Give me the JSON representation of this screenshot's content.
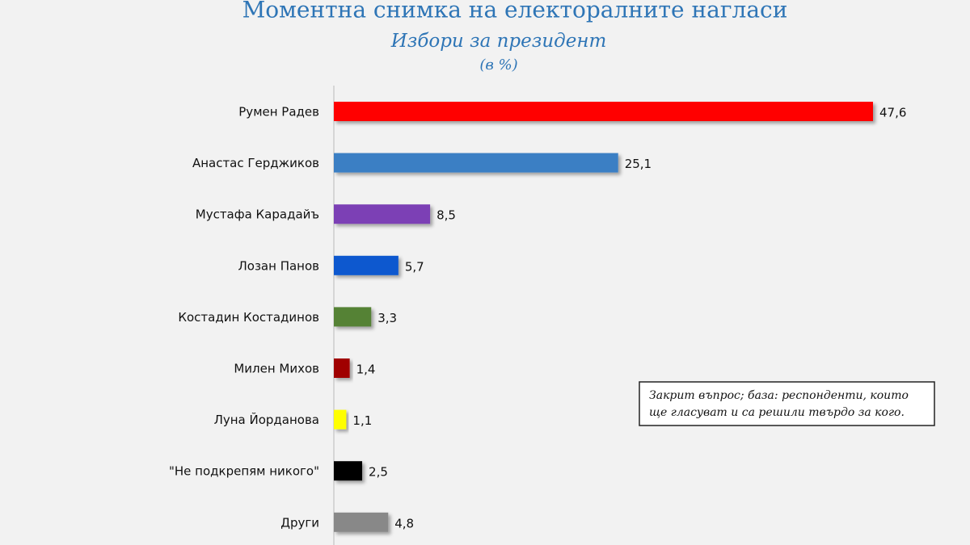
{
  "chart_data": {
    "type": "hbar",
    "title": "Моментна снимка на електоралните нагласи",
    "subtitle": "Избори за президент",
    "unit_note": "(в %)",
    "categories": [
      "Румен Радев",
      "Анастас Герджиков",
      "Мустафа Карадайъ",
      "Лозан Панов",
      "Костадин Костадинов",
      "Милен Михов",
      "Луна Йорданова",
      "\"Не подкрепям никого\"",
      "Други"
    ],
    "values": [
      47.6,
      25.1,
      8.5,
      5.7,
      3.3,
      1.4,
      1.1,
      2.5,
      4.8
    ],
    "value_labels": [
      "47,6",
      "25,1",
      "8,5",
      "5,7",
      "3,3",
      "1,4",
      "1,1",
      "2,5",
      "4,8"
    ],
    "colors": [
      "#ff0000",
      "#3a7fc4",
      "#7b3fb5",
      "#0a59cf",
      "#548235",
      "#a00000",
      "#ffff00",
      "#000000",
      "#888888"
    ],
    "annotation": [
      "Закрит въпрос; база: респонденти, които",
      "ще гласуват и са решили твърдо за кого."
    ]
  }
}
